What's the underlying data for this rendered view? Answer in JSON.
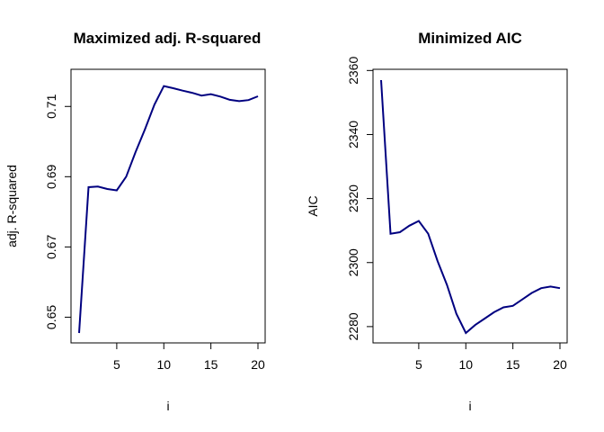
{
  "chart_data": [
    {
      "type": "line",
      "title": "Maximized adj. R-squared",
      "xlabel": "i",
      "ylabel": "adj. R-squared",
      "xlim": [
        1,
        20
      ],
      "ylim": [
        0.6455,
        0.7175
      ],
      "xticks": [
        5,
        10,
        15,
        20
      ],
      "yticks": [
        0.65,
        0.67,
        0.69,
        0.71
      ],
      "xtick_labels": [
        "5",
        "10",
        "15",
        "20"
      ],
      "ytick_labels": [
        "0.65",
        "0.67",
        "0.69",
        "0.71"
      ],
      "grid": false,
      "line_color": "#000080",
      "x": [
        1,
        2,
        3,
        4,
        5,
        6,
        7,
        8,
        9,
        10,
        11,
        12,
        13,
        14,
        15,
        16,
        17,
        18,
        19,
        20
      ],
      "values": [
        0.6455,
        0.687,
        0.6872,
        0.6865,
        0.6861,
        0.69,
        0.697,
        0.7035,
        0.7105,
        0.7158,
        0.7152,
        0.7145,
        0.7139,
        0.7131,
        0.7135,
        0.7128,
        0.7119,
        0.7115,
        0.7118,
        0.7129
      ]
    },
    {
      "type": "line",
      "title": "Minimized AIC",
      "xlabel": "i",
      "ylabel": "AIC",
      "xlim": [
        1,
        20
      ],
      "ylim": [
        2278,
        2357
      ],
      "xticks": [
        5,
        10,
        15,
        20
      ],
      "yticks": [
        2280,
        2300,
        2320,
        2340,
        2360
      ],
      "xtick_labels": [
        "5",
        "10",
        "15",
        "20"
      ],
      "ytick_labels": [
        "2280",
        "2300",
        "2320",
        "2340",
        "2360"
      ],
      "grid": false,
      "line_color": "#000080",
      "x": [
        1,
        2,
        3,
        4,
        5,
        6,
        7,
        8,
        9,
        10,
        11,
        12,
        13,
        14,
        15,
        16,
        17,
        18,
        19,
        20
      ],
      "values": [
        2357,
        2309,
        2309.5,
        2311.5,
        2313,
        2309,
        2300.5,
        2293,
        2284,
        2278,
        2280.5,
        2282.5,
        2284.5,
        2286,
        2286.5,
        2288.5,
        2290.5,
        2292,
        2292.5,
        2292
      ]
    }
  ]
}
